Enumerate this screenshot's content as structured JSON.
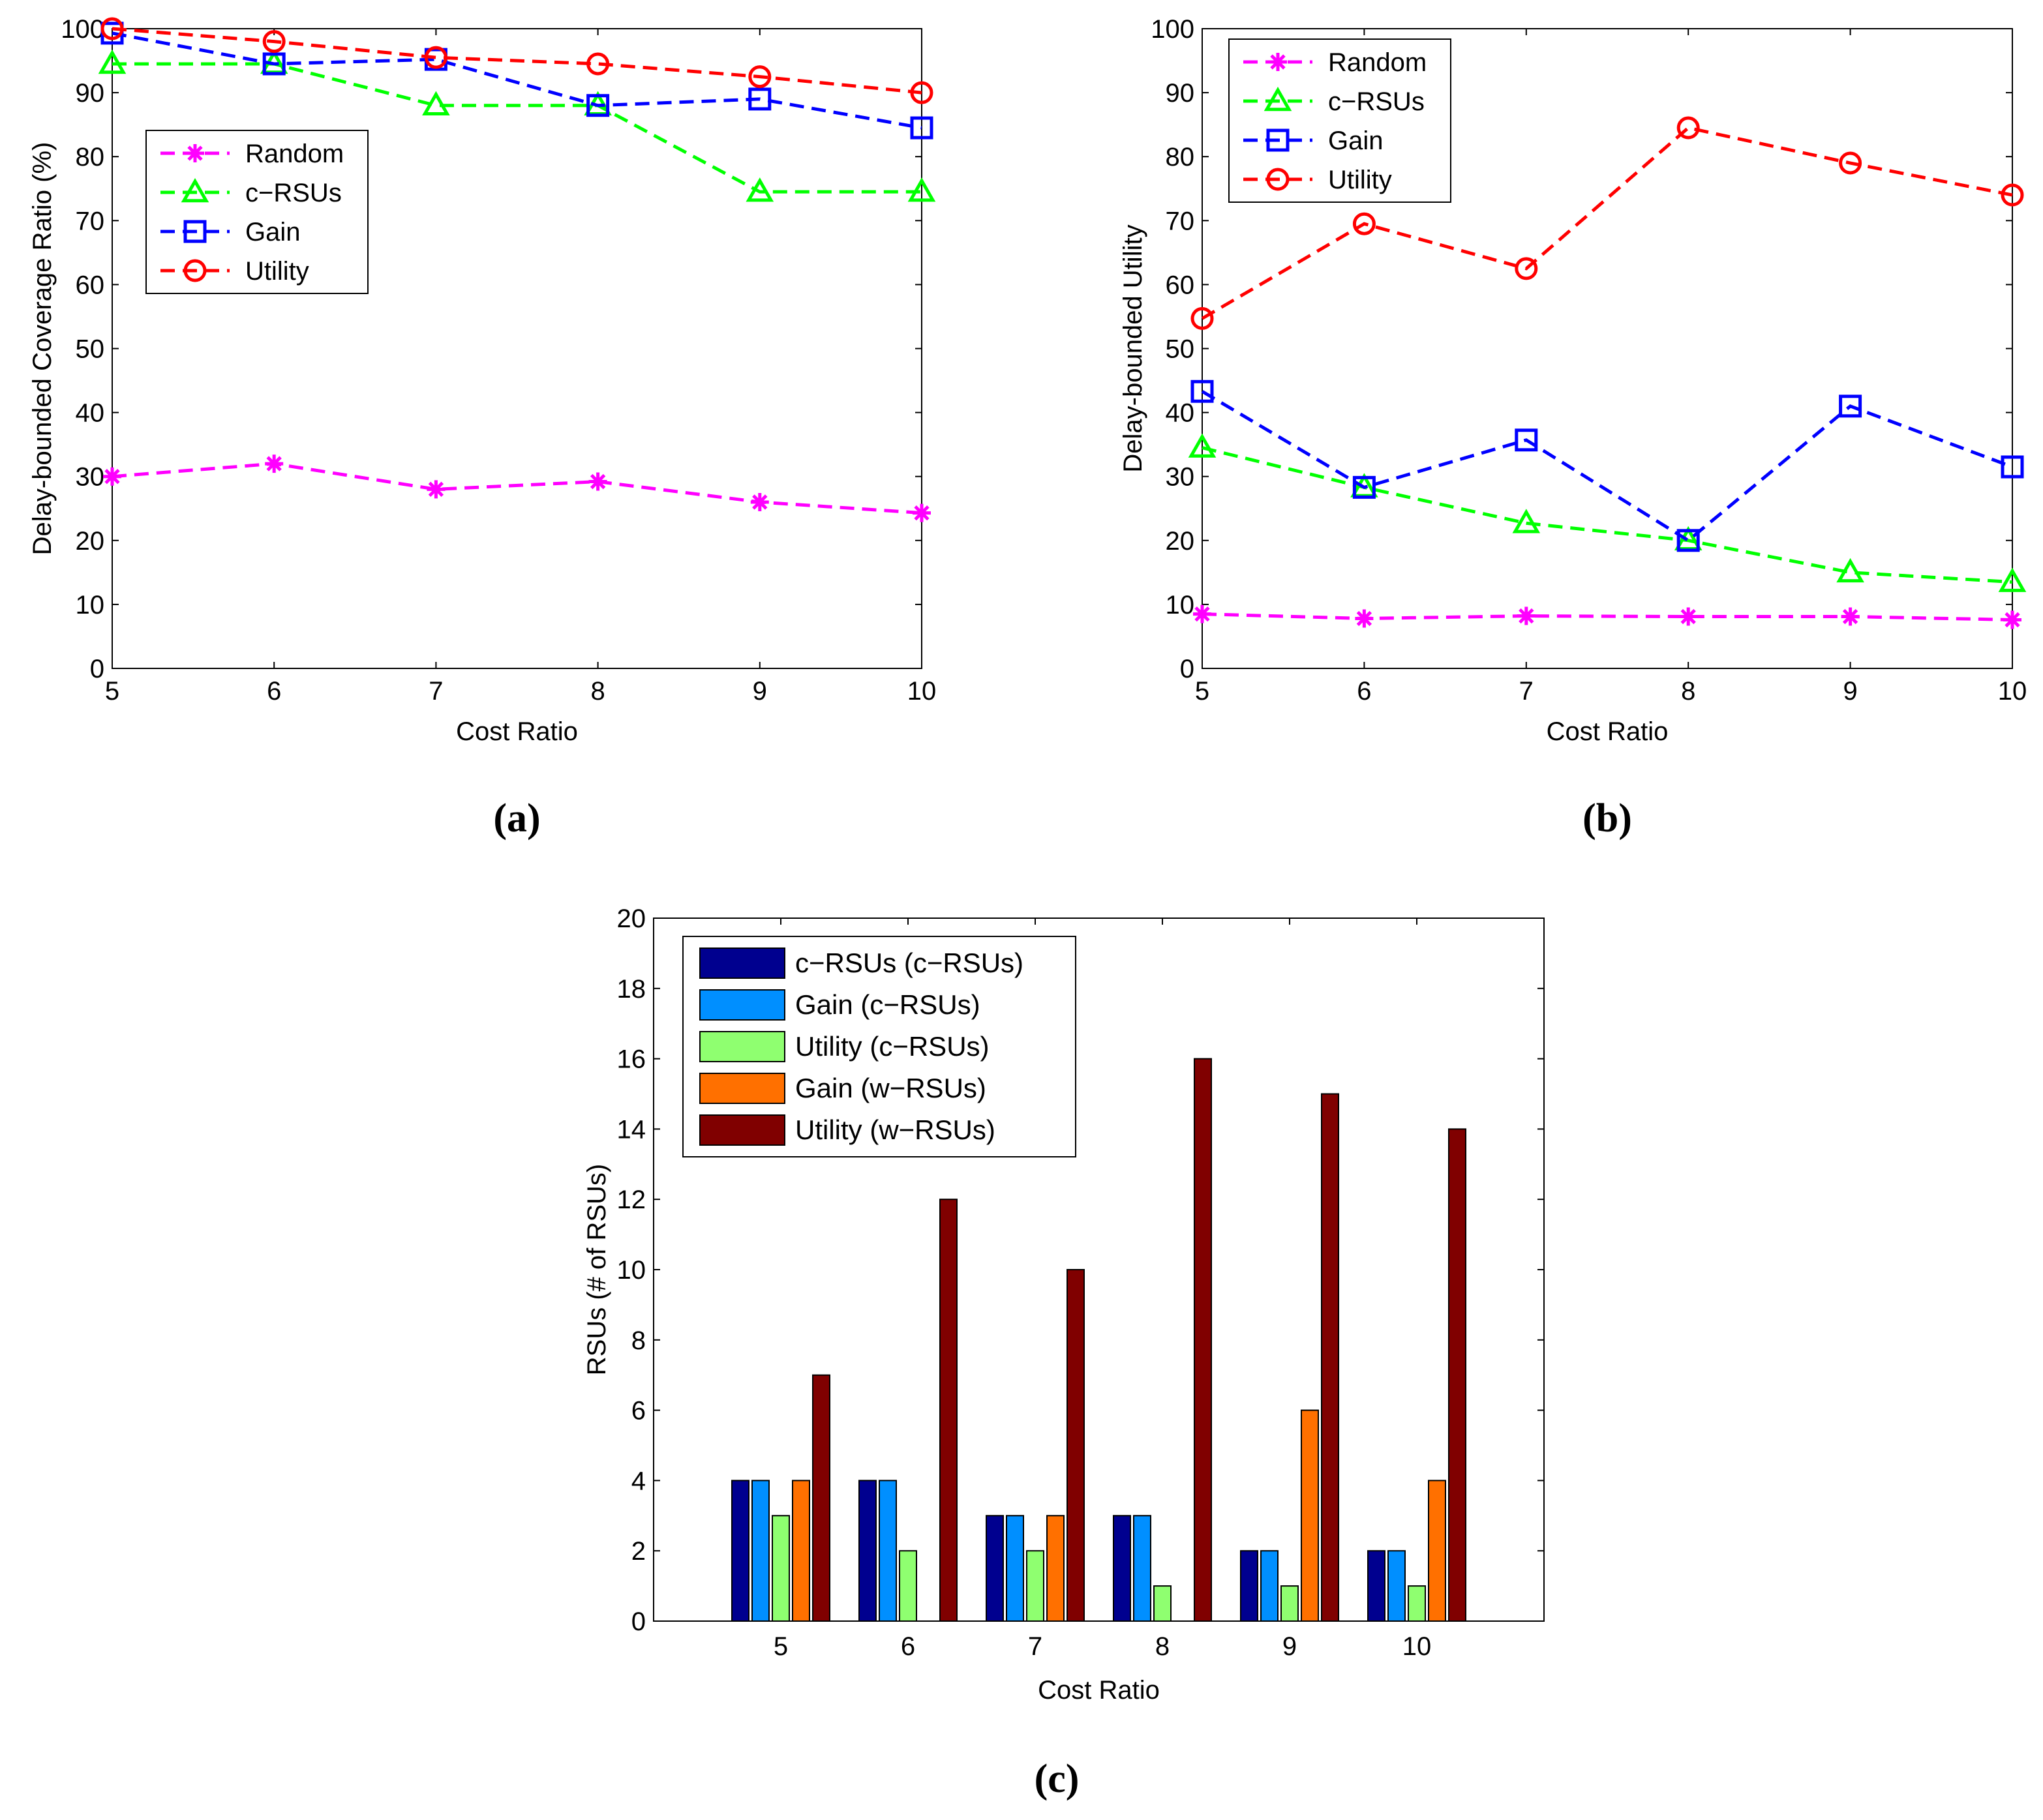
{
  "chart_data": [
    {
      "panel_label_open": "(",
      "panel_label": "a",
      "panel_label_close": ")",
      "type": "line",
      "title": "",
      "xlabel": "Cost Ratio",
      "ylabel": "Delay-bounded Coverage Ratio (%)",
      "xlim": [
        5,
        10
      ],
      "ylim": [
        0,
        100
      ],
      "xticks": [
        "5",
        "6",
        "7",
        "8",
        "9",
        "10"
      ],
      "yticks": [
        "0",
        "10",
        "20",
        "30",
        "40",
        "50",
        "60",
        "70",
        "80",
        "90",
        "100"
      ],
      "x": [
        5,
        6,
        7,
        8,
        9,
        10
      ],
      "legend_position": "upper-left-inset",
      "series": [
        {
          "name": "Random",
          "marker": "asterisk",
          "color": "#ff00ff",
          "values": [
            30,
            32,
            28,
            29.2,
            26,
            24.3
          ]
        },
        {
          "name": "c−RSUs",
          "marker": "triangle",
          "color": "#00ff00",
          "values": [
            94.5,
            94.5,
            88,
            88,
            74.5,
            74.5
          ]
        },
        {
          "name": "Gain",
          "marker": "square",
          "color": "#0000ff",
          "values": [
            99.3,
            94.5,
            95.2,
            88,
            89,
            84.5
          ]
        },
        {
          "name": "Utility",
          "marker": "circle",
          "color": "#ff0000",
          "values": [
            100,
            98,
            95.5,
            94.5,
            92.5,
            90
          ]
        }
      ]
    },
    {
      "panel_label_open": "(",
      "panel_label": "b",
      "panel_label_close": ")",
      "type": "line",
      "title": "",
      "xlabel": "Cost Ratio",
      "ylabel": "Delay-bounded Utility",
      "xlim": [
        5,
        10
      ],
      "ylim": [
        0,
        100
      ],
      "xticks": [
        "5",
        "6",
        "7",
        "8",
        "9",
        "10"
      ],
      "yticks": [
        "0",
        "10",
        "20",
        "30",
        "40",
        "50",
        "60",
        "70",
        "80",
        "90",
        "100"
      ],
      "x": [
        5,
        6,
        7,
        8,
        9,
        10
      ],
      "legend_position": "top-left",
      "series": [
        {
          "name": "Random",
          "marker": "asterisk",
          "color": "#ff00ff",
          "values": [
            8.5,
            7.8,
            8.2,
            8.1,
            8.1,
            7.6
          ]
        },
        {
          "name": "c−RSUs",
          "marker": "triangle",
          "color": "#00ff00",
          "values": [
            34.5,
            28.3,
            22.7,
            20,
            15,
            13.5
          ]
        },
        {
          "name": "Gain",
          "marker": "square",
          "color": "#0000ff",
          "values": [
            43.3,
            28.3,
            35.7,
            20,
            41,
            31.5
          ]
        },
        {
          "name": "Utility",
          "marker": "circle",
          "color": "#ff0000",
          "values": [
            54.7,
            69.5,
            62.5,
            84.5,
            79,
            74
          ]
        }
      ]
    },
    {
      "panel_label_open": "(",
      "panel_label": "c",
      "panel_label_close": ")",
      "type": "bar",
      "title": "",
      "xlabel": "Cost Ratio",
      "ylabel": "RSUs (# of RSUs)",
      "categories": [
        "5",
        "6",
        "7",
        "8",
        "9",
        "10"
      ],
      "ylim": [
        0,
        20
      ],
      "yticks": [
        "0",
        "2",
        "4",
        "6",
        "8",
        "10",
        "12",
        "14",
        "16",
        "18",
        "20"
      ],
      "legend_position": "top-left",
      "series": [
        {
          "name": "c−RSUs (c−RSUs)",
          "color": "#00008f",
          "values": [
            4,
            4,
            3,
            3,
            2,
            2
          ]
        },
        {
          "name": "Gain (c−RSUs)",
          "color": "#008fff",
          "values": [
            4,
            4,
            3,
            3,
            2,
            2
          ]
        },
        {
          "name": "Utility (c−RSUs)",
          "color": "#8fff70",
          "values": [
            3,
            2,
            2,
            1,
            1,
            1
          ]
        },
        {
          "name": "Gain (w−RSUs)",
          "color": "#ff7000",
          "values": [
            4,
            0,
            3,
            0,
            6,
            4
          ]
        },
        {
          "name": "Utility (w−RSUs)",
          "color": "#800000",
          "values": [
            7,
            12,
            10,
            16,
            15,
            14
          ]
        }
      ]
    }
  ]
}
